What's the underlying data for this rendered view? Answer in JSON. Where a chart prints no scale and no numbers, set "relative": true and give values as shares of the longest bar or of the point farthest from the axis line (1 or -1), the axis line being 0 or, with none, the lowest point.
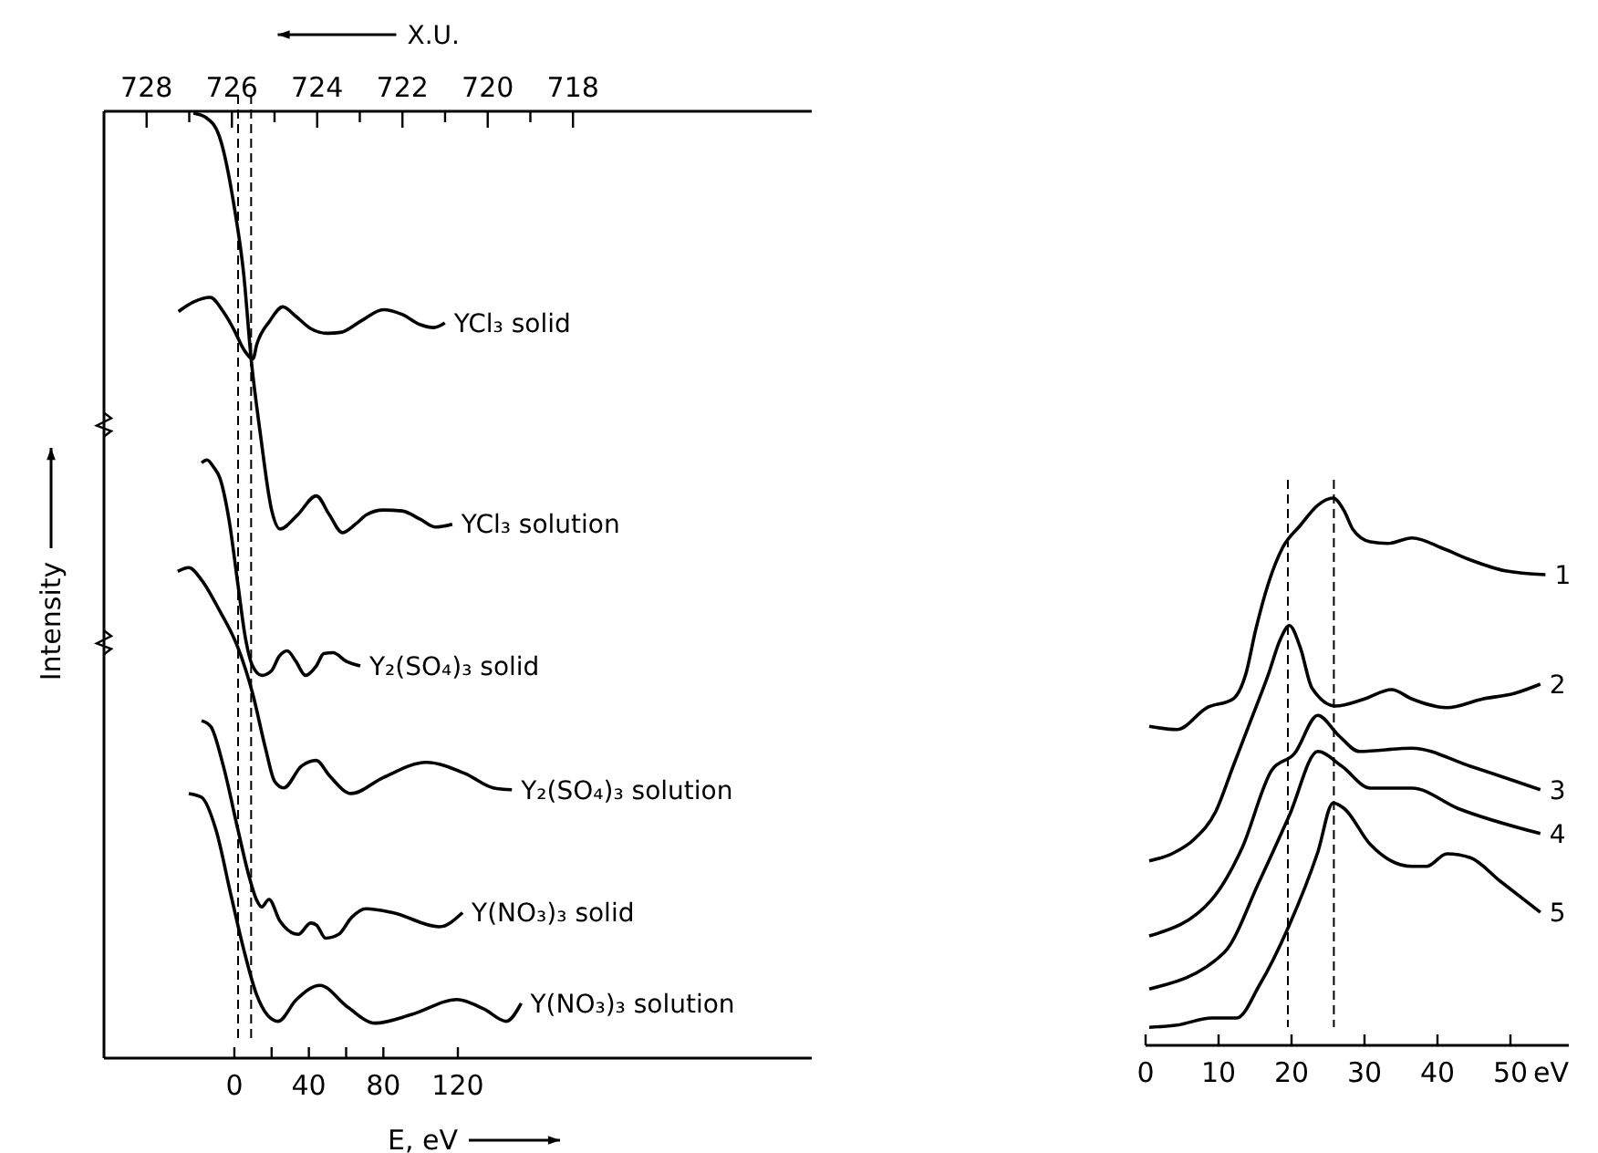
{
  "chart_data": [
    {
      "type": "line",
      "relative": true,
      "ylabel": "Intensity",
      "xlabel": "E, eV",
      "x2label": "X.U.",
      "xlim": [
        -70,
        310
      ],
      "xticks": [
        0,
        {
          "value": 20,
          "label": null
        },
        40,
        {
          "value": 60,
          "label": null
        },
        80,
        120
      ],
      "x2lim": [
        729,
        712.4
      ],
      "x2ticks": [
        728,
        {
          "value": 727,
          "label": null
        },
        726,
        {
          "value": 725,
          "label": null
        },
        724,
        {
          "value": 723,
          "label": null
        },
        722,
        {
          "value": 721,
          "label": null
        },
        720,
        {
          "value": 719,
          "label": null
        },
        718
      ],
      "grid": false,
      "ref_lines": [
        {
          "axis": "x",
          "value": 2,
          "line_style": "dashed"
        },
        {
          "axis": "x",
          "value": 9,
          "line_style": "dashed"
        }
      ],
      "series": [
        {
          "name": "YCl₃ solid",
          "color": "#000000",
          "x": [
            -30,
            -22,
            -13,
            -6,
            0,
            5,
            10,
            12,
            19,
            26,
            33,
            41,
            50,
            57,
            68,
            80,
            90,
            100,
            107,
            113
          ],
          "values": [
            0.79,
            0.8,
            0.805,
            0.79,
            0.77,
            0.75,
            0.74,
            0.755,
            0.78,
            0.795,
            0.785,
            0.772,
            0.767,
            0.768,
            0.78,
            0.792,
            0.787,
            0.776,
            0.773,
            0.778
          ]
        },
        {
          "name": "YCl₃ solution",
          "color": "#000000",
          "x": [
            -22,
            -15,
            -8,
            0,
            5,
            9,
            14,
            20,
            24.5,
            34,
            44,
            51,
            58,
            65,
            71,
            80,
            90,
            100,
            108,
            117
          ],
          "values": [
            1.0,
            0.995,
            0.975,
            0.9,
            0.83,
            0.74,
            0.66,
            0.58,
            0.56,
            0.575,
            0.595,
            0.575,
            0.556,
            0.565,
            0.575,
            0.58,
            0.579,
            0.57,
            0.562,
            0.565
          ]
        },
        {
          "name": "Y₂(SO₄)₃ solid",
          "color": "#000000",
          "x": [
            -17.6,
            -14.7,
            -11,
            -7.8,
            -2.9,
            2,
            5.9,
            9.8,
            14.7,
            20,
            24,
            28.4,
            33,
            38.2,
            44,
            48,
            53,
            60,
            67.6
          ],
          "values": [
            0.63,
            0.633,
            0.625,
            0.614,
            0.57,
            0.5,
            0.445,
            0.415,
            0.405,
            0.41,
            0.425,
            0.431,
            0.42,
            0.405,
            0.415,
            0.428,
            0.429,
            0.42,
            0.415
          ]
        },
        {
          "name": "Y₂(SO₄)₃ solution",
          "color": "#000000",
          "x": [
            -30.4,
            -24.5,
            -17.6,
            -7.8,
            2,
            9.8,
            16.7,
            21.6,
            26.5,
            36,
            44,
            51,
            62.7,
            80,
            103,
            124,
            139,
            149
          ],
          "values": [
            0.515,
            0.519,
            0.506,
            0.473,
            0.434,
            0.386,
            0.328,
            0.293,
            0.286,
            0.309,
            0.315,
            0.299,
            0.28,
            0.297,
            0.313,
            0.301,
            0.286,
            0.284
          ]
        },
        {
          "name": "Y(NO₃)₃ solid",
          "color": "#000000",
          "x": [
            -17.6,
            -12.7,
            -5.9,
            2,
            7.8,
            11.8,
            14.7,
            18.6,
            24.5,
            34.3,
            41,
            44,
            49,
            56,
            63,
            70.6,
            85,
            110,
            122.5
          ],
          "values": [
            0.357,
            0.351,
            0.309,
            0.241,
            0.193,
            0.168,
            0.16,
            0.168,
            0.145,
            0.131,
            0.143,
            0.141,
            0.127,
            0.131,
            0.149,
            0.158,
            0.154,
            0.139,
            0.154
          ]
        },
        {
          "name": "Y(NO₃)₃ solution",
          "color": "#000000",
          "x": [
            -24.5,
            -17.6,
            -9.8,
            -2,
            4.9,
            11.8,
            17.6,
            23.5,
            33.3,
            46,
            60.8,
            75.5,
            95,
            119.6,
            134,
            146,
            154
          ],
          "values": [
            0.28,
            0.276,
            0.241,
            0.174,
            0.116,
            0.068,
            0.046,
            0.039,
            0.062,
            0.077,
            0.054,
            0.037,
            0.046,
            0.062,
            0.052,
            0.039,
            0.058
          ]
        }
      ]
    },
    {
      "type": "line",
      "relative": true,
      "xlabel": "eV",
      "xlim": [
        0,
        58
      ],
      "xticks": [
        0,
        10,
        20,
        30,
        40,
        50
      ],
      "grid": false,
      "ref_lines": [
        {
          "axis": "x",
          "value": 19.5,
          "line_style": "dashed"
        },
        {
          "axis": "x",
          "value": 25.8,
          "line_style": "dashed"
        }
      ],
      "series": [
        {
          "name": "1",
          "color": "#000000",
          "x": [
            0.5,
            4.3,
            8.4,
            12,
            13.7,
            15.1,
            16.8,
            18.8,
            21.2,
            23.6,
            25.7,
            27.2,
            28.4,
            30.8,
            33.2,
            36.5,
            40.9,
            44.5,
            49.3,
            54.8
          ],
          "values": [
            0.583,
            0.577,
            0.617,
            0.633,
            0.677,
            0.76,
            0.843,
            0.91,
            0.95,
            0.987,
            1.0,
            0.977,
            0.943,
            0.92,
            0.917,
            0.927,
            0.907,
            0.887,
            0.867,
            0.86
          ]
        },
        {
          "name": "2",
          "color": "#000000",
          "x": [
            0.5,
            3.6,
            6.7,
            9.6,
            12,
            14.4,
            16.8,
            18.5,
            19.7,
            21.2,
            22.8,
            26,
            30,
            33.7,
            36.5,
            41.3,
            46.2,
            50.5,
            54.1
          ],
          "values": [
            0.337,
            0.35,
            0.377,
            0.427,
            0.51,
            0.593,
            0.677,
            0.743,
            0.767,
            0.727,
            0.653,
            0.62,
            0.633,
            0.65,
            0.633,
            0.617,
            0.633,
            0.643,
            0.66
          ]
        },
        {
          "name": "3",
          "color": "#000000",
          "x": [
            0.5,
            9.1,
            13.2,
            17.3,
            20.4,
            23.6,
            26.4,
            29.3,
            36.5,
            44.5,
            54.1
          ],
          "values": [
            0.2,
            0.267,
            0.36,
            0.503,
            0.533,
            0.603,
            0.567,
            0.537,
            0.543,
            0.51,
            0.467
          ]
        },
        {
          "name": "4",
          "color": "#000000",
          "x": [
            0.5,
            10.8,
            15.6,
            19.7,
            23.6,
            26.9,
            30.8,
            36.5,
            42.8,
            54.1
          ],
          "values": [
            0.103,
            0.17,
            0.3,
            0.42,
            0.537,
            0.51,
            0.47,
            0.47,
            0.433,
            0.387
          ]
        },
        {
          "name": "5",
          "color": "#000000",
          "x": [
            0.5,
            4.3,
            9.1,
            12.5,
            15.6,
            19.7,
            23.6,
            25.7,
            27.2,
            30.8,
            36.5,
            38.5,
            41.3,
            44.5,
            48.6,
            54.1
          ],
          "values": [
            0.033,
            0.037,
            0.05,
            0.05,
            0.11,
            0.22,
            0.353,
            0.443,
            0.433,
            0.367,
            0.327,
            0.327,
            0.35,
            0.343,
            0.3,
            0.243
          ]
        }
      ]
    }
  ]
}
